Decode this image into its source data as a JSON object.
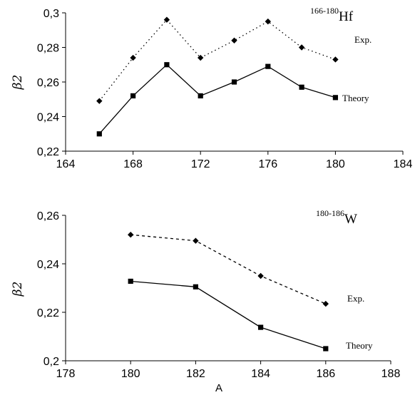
{
  "chart_data": [
    {
      "type": "line",
      "annotation": {
        "mass": "166-180",
        "element": "Hf"
      },
      "ylabel": "β2",
      "xlabel": "",
      "xlim": [
        164,
        184
      ],
      "ylim": [
        0.22,
        0.3
      ],
      "xticks": [
        "164",
        "168",
        "172",
        "176",
        "180",
        "184"
      ],
      "yticks": [
        "0,22",
        "0,24",
        "0,26",
        "0,28",
        "0,3"
      ],
      "x": [
        166,
        168,
        170,
        172,
        174,
        176,
        178,
        180
      ],
      "series": [
        {
          "name": "Exp.",
          "style": "dotted",
          "marker": "diamond",
          "values": [
            0.249,
            0.274,
            0.296,
            0.274,
            0.284,
            0.295,
            0.28,
            0.273
          ]
        },
        {
          "name": "Theory",
          "style": "solid",
          "marker": "square",
          "values": [
            0.23,
            0.252,
            0.27,
            0.252,
            0.26,
            0.269,
            0.257,
            0.251
          ]
        }
      ]
    },
    {
      "type": "line",
      "annotation": {
        "mass": "180-186",
        "element": "W"
      },
      "ylabel": "β2",
      "xlabel": "A",
      "xlim": [
        178,
        188
      ],
      "ylim": [
        0.2,
        0.26
      ],
      "xticks": [
        "178",
        "180",
        "182",
        "184",
        "186",
        "188"
      ],
      "yticks": [
        "0,2",
        "0,22",
        "0,24",
        "0,26"
      ],
      "x": [
        180,
        182,
        184,
        186
      ],
      "series": [
        {
          "name": "Exp.",
          "style": "dashed",
          "marker": "diamond",
          "values": [
            0.252,
            0.2495,
            0.235,
            0.2235
          ]
        },
        {
          "name": "Theory",
          "style": "solid",
          "marker": "square",
          "values": [
            0.2328,
            0.2305,
            0.2138,
            0.205
          ]
        }
      ]
    }
  ]
}
